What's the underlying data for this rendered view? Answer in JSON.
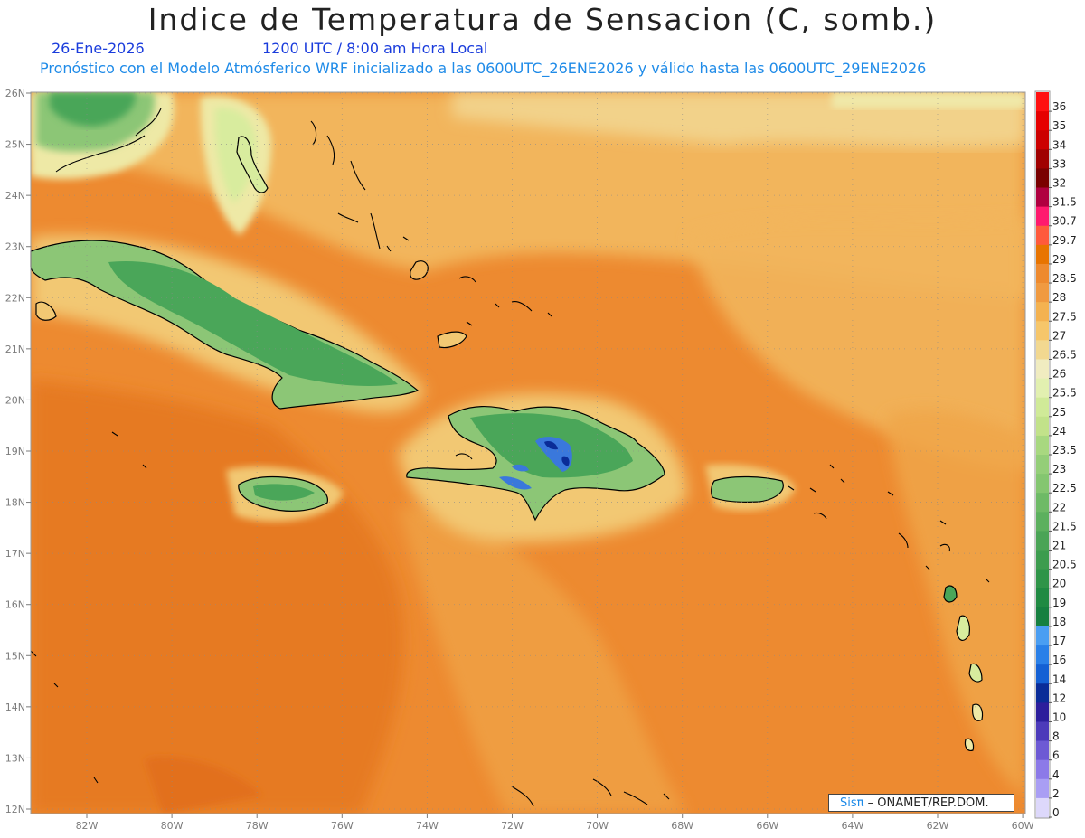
{
  "header": {
    "title": "Indice de Temperatura de Sensacion (C, somb.)",
    "date": "26-Ene-2026",
    "time": "1200 UTC / 8:00 am Hora Local",
    "info": "Pronóstico con el Modelo Atmósferico WRF inicializado a las 0600UTC_26ENE2026 y válido hasta las  0600UTC_29ENE2026"
  },
  "credit": {
    "logo": "Sisπ",
    "text": "– ONAMET/REP.DOM."
  },
  "axes": {
    "lat_labels": [
      "26N",
      "25N",
      "24N",
      "23N",
      "22N",
      "21N",
      "20N",
      "19N",
      "18N",
      "17N",
      "16N",
      "15N",
      "14N",
      "13N",
      "12N"
    ],
    "lon_labels": [
      "82W",
      "80W",
      "78W",
      "76W",
      "74W",
      "72W",
      "70W",
      "68W",
      "66W",
      "64W",
      "62W",
      "60W"
    ]
  },
  "colorbar": {
    "levels": [
      "36",
      "35",
      "34",
      "33",
      "32",
      "31.5",
      "30.7",
      "29.7",
      "29",
      "28.5",
      "28",
      "27.5",
      "27",
      "26.5",
      "26",
      "25.5",
      "25",
      "24",
      "23.5",
      "23",
      "22.5",
      "22",
      "21.5",
      "21",
      "20.5",
      "20",
      "19",
      "18",
      "17",
      "16",
      "14",
      "12",
      "10",
      "8",
      "6",
      "4",
      "2",
      "0"
    ],
    "colors": [
      "#ff1010",
      "#e60000",
      "#cc0000",
      "#a00000",
      "#7a0000",
      "#b00040",
      "#ff1a6e",
      "#ff5a3c",
      "#e87400",
      "#ee8a2e",
      "#f09a40",
      "#f4b250",
      "#f6c66a",
      "#f2d890",
      "#f0ecc0",
      "#e2f0b0",
      "#d0ea98",
      "#c2e28a",
      "#a8d880",
      "#94ce78",
      "#84c670",
      "#6eba66",
      "#5cb05e",
      "#4aa456",
      "#3c9c4e",
      "#2e9448",
      "#1f8a42",
      "#168040",
      "#4a9ef2",
      "#2a80e8",
      "#1460d4",
      "#0a2c98",
      "#2c1e9c",
      "#4c3aba",
      "#6d5ad4",
      "#8c7ae8",
      "#a99ef4",
      "#ddd8fb"
    ]
  },
  "map_colors": {
    "sea": "#ed8a30",
    "sea_dark": "#e67a22",
    "sea_north": "#f2b55b",
    "sea_far_north": "#f4d48e",
    "land_light": "#eee9a6",
    "land_green": "#8cc676",
    "land_dark": "#4aa659",
    "mountain_blue": "#3a78dc"
  }
}
